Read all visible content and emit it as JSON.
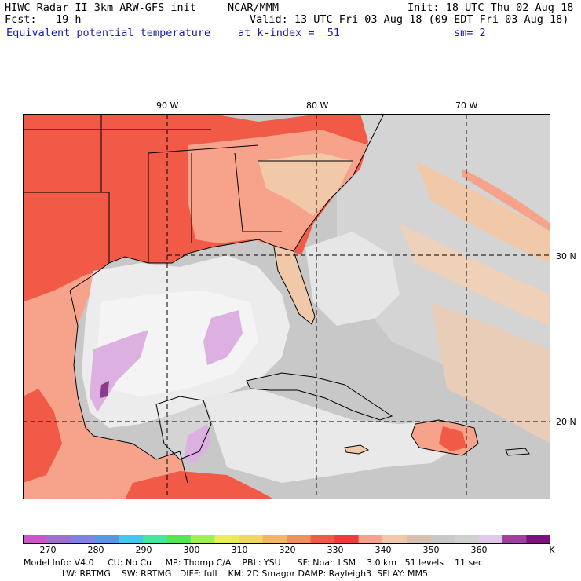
{
  "header": {
    "line1_left": "HIWC Radar II 3km ARW-GFS init",
    "line1_mid": "NCAR/MMM",
    "line1_right": "Init: 18 UTC Thu 02 Aug 18",
    "line2_left": "Fcst:   19 h",
    "line2_right": "Valid: 13 UTC Fri 03 Aug 18 (09 EDT Fri 03 Aug 18)",
    "line3_field": "Equivalent potential temperature",
    "line3_mid": "at k-index =  51",
    "line3_right": "sm= 2"
  },
  "map": {
    "lon_labels": [
      "90 W",
      "80 W",
      "70 W"
    ],
    "lat_labels": [
      "30 N",
      "20 N"
    ],
    "colors": {
      "ocean_gray": "#c8c8c8",
      "light_gray": "#d9d9d9",
      "white_cloud": "#f0f0f0",
      "lavender": "#dcb0e0",
      "purple": "#8c3a8c",
      "tan": "#f2c9a8",
      "salmon": "#f7a38b",
      "red_orange": "#f05a46",
      "grid_dash": "#000000"
    }
  },
  "colorbar": {
    "colors": [
      "#cc55cc",
      "#a070d0",
      "#8080e8",
      "#5a96e6",
      "#40c8f0",
      "#40e8a0",
      "#50e850",
      "#a0f050",
      "#e8f050",
      "#f0d860",
      "#f0b860",
      "#f09060",
      "#f05a46",
      "#f03c3c",
      "#f7a38b",
      "#f2c9a8",
      "#d8c0b0",
      "#c8c8c8",
      "#d0d0d0",
      "#e0c8e8",
      "#a040a0",
      "#801080"
    ],
    "ticks": [
      "270",
      "280",
      "290",
      "300",
      "310",
      "320",
      "330",
      "340",
      "350",
      "360",
      "K"
    ]
  },
  "footer": {
    "line1": "Model Info: V4.0     CU: No Cu     MP: Thomp C/A    PBL: YSU      SF: Noah LSM    3.0 km   51 levels    11 sec",
    "line2": "              LW: RRTMG    SW: RRTMG   DIFF: full    KM: 2D Smagor DAMP: Rayleigh3  SFLAY: MM5"
  }
}
